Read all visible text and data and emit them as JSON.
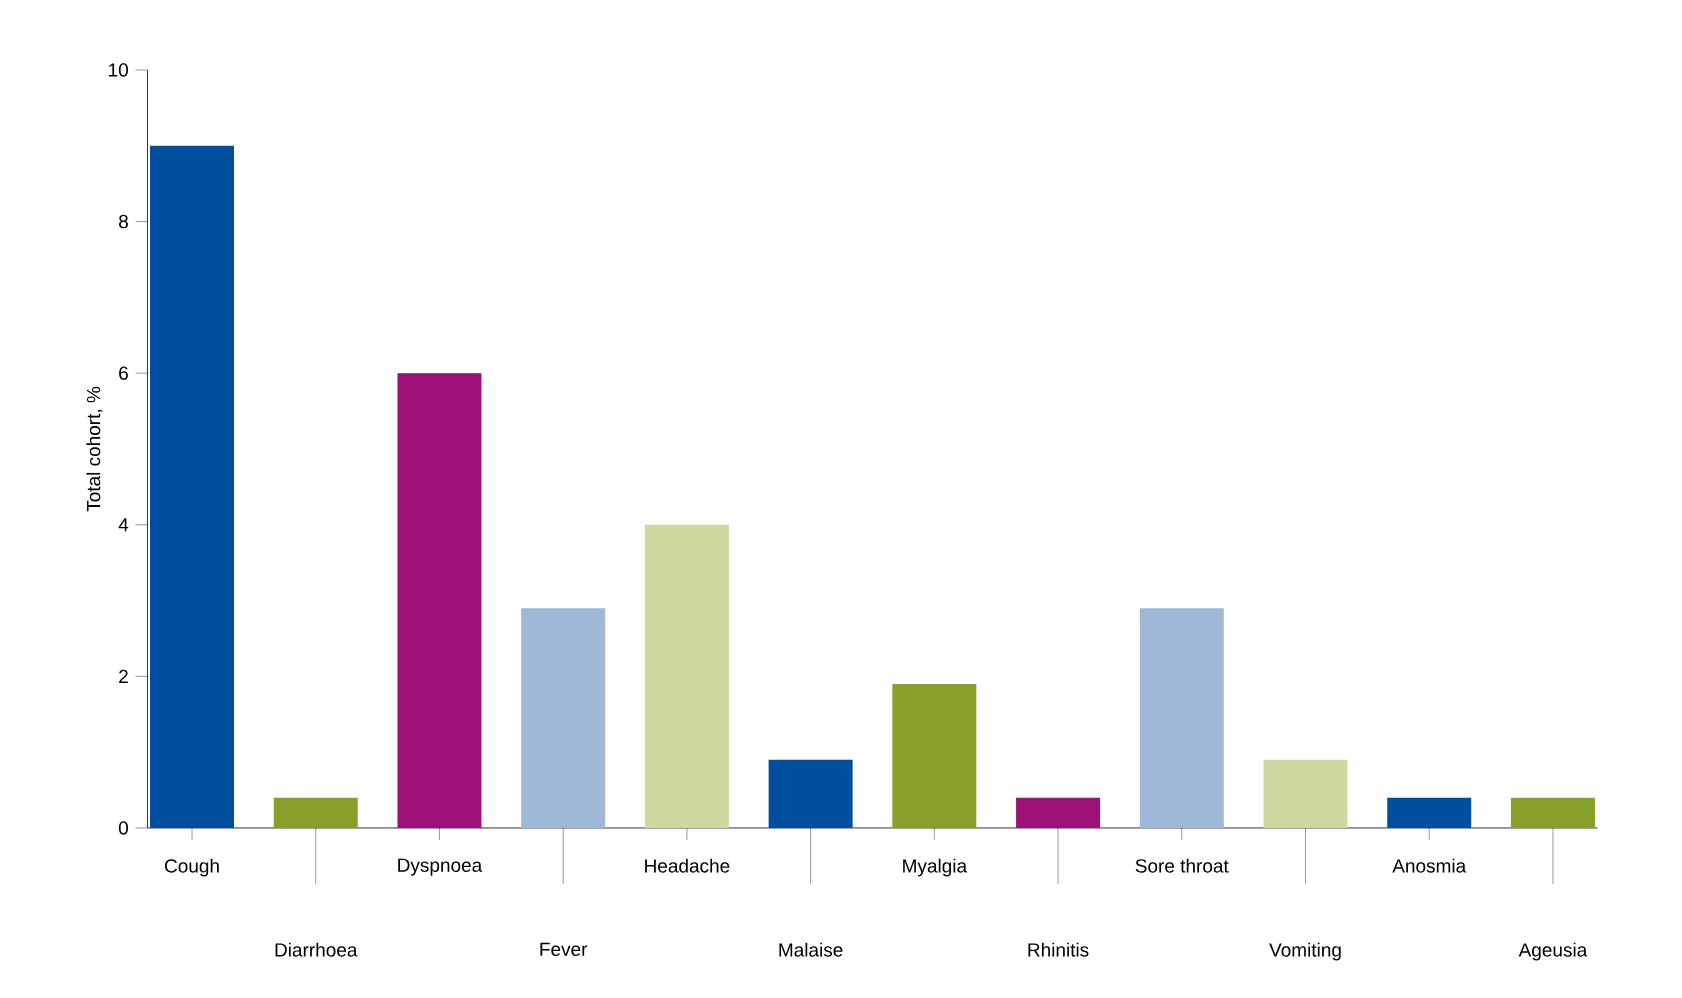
{
  "chart_data": {
    "type": "bar",
    "ylabel": "Total cohort, %",
    "categories": [
      "Cough",
      "Diarrhoea",
      "Dyspnoea",
      "Fever",
      "Headache",
      "Malaise",
      "Myalgia",
      "Rhinitis",
      "Sore throat",
      "Vomiting",
      "Anosmia",
      "Ageusia"
    ],
    "values": [
      9.0,
      0.4,
      6.0,
      2.9,
      4.0,
      0.9,
      1.9,
      0.4,
      2.9,
      0.9,
      0.4,
      0.4
    ],
    "colors": [
      "#004f9e",
      "#87a02a",
      "#9c1077",
      "#a0b8d8",
      "#d0d8a0",
      "#004f9e",
      "#87a02a",
      "#9c1077",
      "#a0b8d8",
      "#d0d8a0",
      "#004f9e",
      "#87a02a"
    ],
    "ylim": [
      0,
      10
    ],
    "yticks": [
      0,
      2,
      4,
      6,
      8,
      10
    ],
    "grid": false
  }
}
